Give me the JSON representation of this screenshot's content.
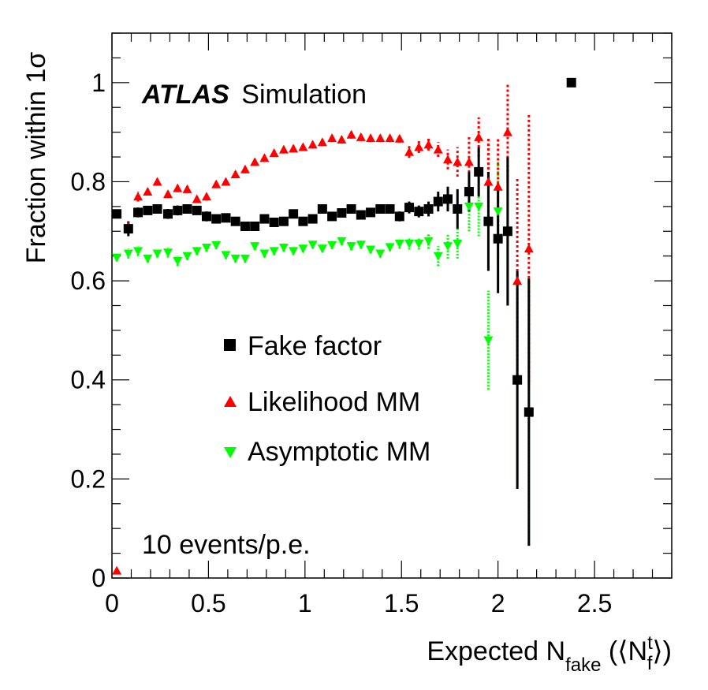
{
  "chart_data": {
    "type": "scatter",
    "title": "",
    "experiment": "ATLAS",
    "experiment_tag": "Simulation",
    "annotation": "10 events/p.e.",
    "ylabel": "Fraction within 1σ",
    "xlabel": {
      "base": "Expected N",
      "sub": "fake",
      "paren_open": " (⟨N",
      "sup": "t",
      "sub2": "f",
      "paren_close": "⟩)"
    },
    "xlim": [
      0,
      2.9
    ],
    "ylim": [
      0,
      1.1
    ],
    "xticks": [
      0,
      0.5,
      1,
      1.5,
      2,
      2.5
    ],
    "xtick_labels": [
      "0",
      "0.5",
      "1",
      "1.5",
      "2",
      "2.5"
    ],
    "yticks": [
      0,
      0.2,
      0.4,
      0.6,
      0.8,
      1
    ],
    "ytick_labels": [
      "0",
      "0.2",
      "0.4",
      "0.6",
      "0.8",
      "1"
    ],
    "grid": false,
    "legend_position": "center-left",
    "series": [
      {
        "name": "Fake factor",
        "marker": "square",
        "color": "#000000",
        "points": [
          [
            0.025,
            0.735,
            0.005
          ],
          [
            0.085,
            0.705,
            0.015
          ],
          [
            0.135,
            0.738,
            0.01
          ],
          [
            0.185,
            0.742,
            0.008
          ],
          [
            0.235,
            0.745,
            0.008
          ],
          [
            0.29,
            0.735,
            0.01
          ],
          [
            0.34,
            0.742,
            0.01
          ],
          [
            0.39,
            0.745,
            0.008
          ],
          [
            0.44,
            0.742,
            0.008
          ],
          [
            0.49,
            0.73,
            0.01
          ],
          [
            0.54,
            0.725,
            0.008
          ],
          [
            0.59,
            0.727,
            0.008
          ],
          [
            0.64,
            0.72,
            0.008
          ],
          [
            0.69,
            0.71,
            0.008
          ],
          [
            0.74,
            0.71,
            0.008
          ],
          [
            0.79,
            0.725,
            0.008
          ],
          [
            0.84,
            0.718,
            0.008
          ],
          [
            0.89,
            0.72,
            0.008
          ],
          [
            0.94,
            0.735,
            0.008
          ],
          [
            0.99,
            0.72,
            0.008
          ],
          [
            1.04,
            0.725,
            0.008
          ],
          [
            1.09,
            0.745,
            0.008
          ],
          [
            1.14,
            0.73,
            0.008
          ],
          [
            1.19,
            0.737,
            0.008
          ],
          [
            1.24,
            0.745,
            0.008
          ],
          [
            1.29,
            0.733,
            0.008
          ],
          [
            1.34,
            0.738,
            0.008
          ],
          [
            1.39,
            0.745,
            0.008
          ],
          [
            1.44,
            0.745,
            0.008
          ],
          [
            1.49,
            0.73,
            0.01
          ],
          [
            1.54,
            0.748,
            0.012
          ],
          [
            1.59,
            0.74,
            0.012
          ],
          [
            1.64,
            0.745,
            0.015
          ],
          [
            1.69,
            0.76,
            0.02
          ],
          [
            1.74,
            0.765,
            0.025
          ],
          [
            1.79,
            0.745,
            0.04
          ],
          [
            1.85,
            0.78,
            0.04
          ],
          [
            1.9,
            0.82,
            0.05
          ],
          [
            1.95,
            0.72,
            0.1
          ],
          [
            2.0,
            0.685,
            0.11
          ],
          [
            2.05,
            0.7,
            0.15
          ],
          [
            2.1,
            0.4,
            0.22
          ],
          [
            2.16,
            0.335,
            0.27
          ],
          [
            2.38,
            1.0,
            0.0
          ]
        ]
      },
      {
        "name": "Likelihood MM",
        "marker": "triangle-up",
        "color": "#ff0000",
        "points": [
          [
            0.025,
            0.015,
            0.0
          ],
          [
            0.085,
            0.71,
            0.01
          ],
          [
            0.135,
            0.77,
            0.01
          ],
          [
            0.185,
            0.78,
            0.008
          ],
          [
            0.235,
            0.8,
            0.008
          ],
          [
            0.29,
            0.775,
            0.008
          ],
          [
            0.34,
            0.787,
            0.008
          ],
          [
            0.39,
            0.785,
            0.008
          ],
          [
            0.44,
            0.765,
            0.008
          ],
          [
            0.49,
            0.77,
            0.008
          ],
          [
            0.54,
            0.795,
            0.008
          ],
          [
            0.59,
            0.8,
            0.008
          ],
          [
            0.64,
            0.815,
            0.008
          ],
          [
            0.69,
            0.825,
            0.008
          ],
          [
            0.74,
            0.84,
            0.008
          ],
          [
            0.79,
            0.848,
            0.008
          ],
          [
            0.84,
            0.858,
            0.008
          ],
          [
            0.89,
            0.865,
            0.008
          ],
          [
            0.94,
            0.867,
            0.008
          ],
          [
            0.99,
            0.87,
            0.008
          ],
          [
            1.04,
            0.875,
            0.008
          ],
          [
            1.09,
            0.88,
            0.008
          ],
          [
            1.14,
            0.888,
            0.008
          ],
          [
            1.19,
            0.885,
            0.008
          ],
          [
            1.24,
            0.895,
            0.008
          ],
          [
            1.29,
            0.89,
            0.008
          ],
          [
            1.34,
            0.888,
            0.008
          ],
          [
            1.39,
            0.888,
            0.008
          ],
          [
            1.44,
            0.888,
            0.008
          ],
          [
            1.49,
            0.887,
            0.008
          ],
          [
            1.54,
            0.86,
            0.012
          ],
          [
            1.59,
            0.87,
            0.012
          ],
          [
            1.64,
            0.875,
            0.012
          ],
          [
            1.69,
            0.865,
            0.015
          ],
          [
            1.74,
            0.845,
            0.02
          ],
          [
            1.79,
            0.84,
            0.03
          ],
          [
            1.85,
            0.84,
            0.05
          ],
          [
            1.9,
            0.89,
            0.04
          ],
          [
            1.95,
            0.8,
            0.09
          ],
          [
            2.0,
            0.79,
            0.1
          ],
          [
            2.05,
            0.9,
            0.1
          ],
          [
            2.1,
            0.6,
            0.21
          ],
          [
            2.16,
            0.665,
            0.27
          ],
          [
            2.38,
            1.0,
            0.0
          ]
        ]
      },
      {
        "name": "Asymptotic MM",
        "marker": "triangle-down",
        "color": "#00ff00",
        "points": [
          [
            0.025,
            0.647,
            0.008
          ],
          [
            0.085,
            0.655,
            0.01
          ],
          [
            0.135,
            0.66,
            0.01
          ],
          [
            0.185,
            0.645,
            0.008
          ],
          [
            0.235,
            0.655,
            0.008
          ],
          [
            0.29,
            0.657,
            0.01
          ],
          [
            0.34,
            0.64,
            0.01
          ],
          [
            0.39,
            0.65,
            0.008
          ],
          [
            0.44,
            0.66,
            0.008
          ],
          [
            0.49,
            0.667,
            0.008
          ],
          [
            0.54,
            0.672,
            0.008
          ],
          [
            0.59,
            0.652,
            0.008
          ],
          [
            0.64,
            0.645,
            0.008
          ],
          [
            0.69,
            0.645,
            0.008
          ],
          [
            0.74,
            0.67,
            0.008
          ],
          [
            0.79,
            0.655,
            0.008
          ],
          [
            0.84,
            0.66,
            0.008
          ],
          [
            0.89,
            0.667,
            0.008
          ],
          [
            0.94,
            0.66,
            0.008
          ],
          [
            0.99,
            0.665,
            0.008
          ],
          [
            1.04,
            0.673,
            0.008
          ],
          [
            1.09,
            0.665,
            0.008
          ],
          [
            1.14,
            0.672,
            0.008
          ],
          [
            1.19,
            0.68,
            0.008
          ],
          [
            1.24,
            0.67,
            0.008
          ],
          [
            1.29,
            0.673,
            0.008
          ],
          [
            1.34,
            0.663,
            0.008
          ],
          [
            1.39,
            0.655,
            0.008
          ],
          [
            1.44,
            0.668,
            0.008
          ],
          [
            1.49,
            0.675,
            0.01
          ],
          [
            1.54,
            0.675,
            0.012
          ],
          [
            1.59,
            0.675,
            0.012
          ],
          [
            1.64,
            0.68,
            0.015
          ],
          [
            1.69,
            0.65,
            0.02
          ],
          [
            1.74,
            0.67,
            0.025
          ],
          [
            1.79,
            0.675,
            0.03
          ],
          [
            1.85,
            0.75,
            0.05
          ],
          [
            1.9,
            0.75,
            0.06
          ],
          [
            1.95,
            0.48,
            0.1
          ],
          [
            2.0,
            0.74,
            0.1
          ],
          [
            2.05,
            0.7,
            0.15
          ],
          [
            2.1,
            0.4,
            0.22
          ],
          [
            2.16,
            0.335,
            0.27
          ],
          [
            2.38,
            1.0,
            0.0
          ]
        ]
      }
    ]
  }
}
